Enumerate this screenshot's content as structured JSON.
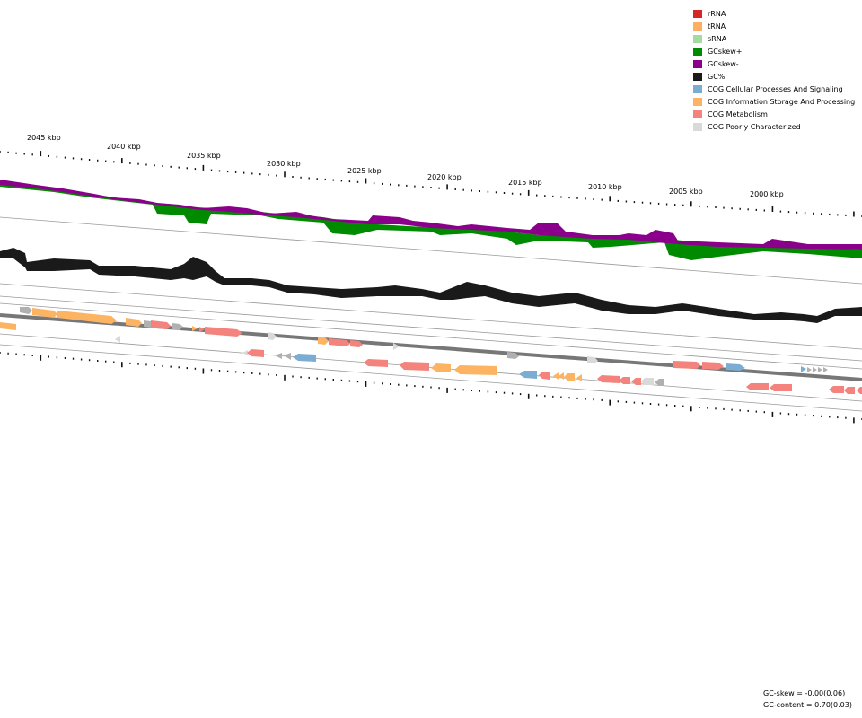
{
  "legend": {
    "items": [
      {
        "label": "rRNA",
        "color": "#d62728"
      },
      {
        "label": "tRNA",
        "color": "#fdae61"
      },
      {
        "label": "sRNA",
        "color": "#a6dba0"
      },
      {
        "label": "GCskew+",
        "color": "#008a00"
      },
      {
        "label": "GCskew-",
        "color": "#8b008b"
      },
      {
        "label": "GC%",
        "color": "#1a1a1a"
      },
      {
        "label": "COG Cellular Processes And Signaling",
        "color": "#7aadd1"
      },
      {
        "label": "COG Information Storage And Processing",
        "color": "#fdb462"
      },
      {
        "label": "COG Metabolism",
        "color": "#f4837d"
      },
      {
        "label": "COG Poorly Characterized",
        "color": "#d9d9d9"
      }
    ]
  },
  "ruler": {
    "unit": "kbp",
    "labels": [
      "2045 kbp",
      "2040 kbp",
      "2035 kbp",
      "2030 kbp",
      "2025 kbp",
      "2020 kbp",
      "2015 kbp",
      "2010 kbp",
      "2005 kbp",
      "2000 kbp"
    ]
  },
  "stats": {
    "gc_skew": "GC-skew = -0.00(0.06)",
    "gc_content": "GC-content = 0.70(0.03)"
  }
}
